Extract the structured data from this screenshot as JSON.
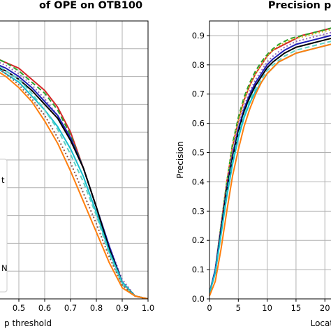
{
  "chart_data": [
    {
      "type": "line",
      "title": "of OPE on OTB100",
      "xlabel": "p threshold",
      "ylabel": "",
      "xlim": [
        0.4,
        1.0
      ],
      "ylim": [
        0.0,
        1.0
      ],
      "x_ticks": [
        "0.5",
        "0.6",
        "0.7",
        "0.8",
        "0.9",
        "1.0"
      ],
      "y_ticks": [],
      "grid": true,
      "legend_fragments": [
        "t",
        "N"
      ],
      "x": [
        0.4,
        0.45,
        0.5,
        0.55,
        0.6,
        0.65,
        0.7,
        0.75,
        0.8,
        0.85,
        0.9,
        0.95,
        1.0
      ],
      "series": [
        {
          "color": "#d62728",
          "dash": "solid",
          "values": [
            0.87,
            0.85,
            0.83,
            0.79,
            0.75,
            0.69,
            0.6,
            0.47,
            0.33,
            0.18,
            0.06,
            0.01,
            0.0
          ]
        },
        {
          "color": "#2ca02c",
          "dash": "dashed",
          "values": [
            0.87,
            0.85,
            0.82,
            0.78,
            0.74,
            0.68,
            0.59,
            0.47,
            0.33,
            0.18,
            0.06,
            0.01,
            0.0
          ]
        },
        {
          "color": "#9467bd",
          "dash": "dotted",
          "values": [
            0.86,
            0.84,
            0.81,
            0.77,
            0.72,
            0.66,
            0.58,
            0.47,
            0.33,
            0.19,
            0.07,
            0.01,
            0.0
          ]
        },
        {
          "color": "#1f1fb4",
          "dash": "solid",
          "values": [
            0.85,
            0.83,
            0.8,
            0.76,
            0.71,
            0.66,
            0.58,
            0.47,
            0.33,
            0.19,
            0.06,
            0.01,
            0.0
          ]
        },
        {
          "color": "#000000",
          "dash": "solid",
          "values": [
            0.84,
            0.82,
            0.79,
            0.75,
            0.7,
            0.65,
            0.57,
            0.47,
            0.33,
            0.18,
            0.06,
            0.01,
            0.0
          ]
        },
        {
          "color": "#17becf",
          "dash": "solid",
          "values": [
            0.84,
            0.81,
            0.78,
            0.73,
            0.68,
            0.62,
            0.54,
            0.44,
            0.31,
            0.17,
            0.06,
            0.01,
            0.0
          ]
        },
        {
          "color": "#5fd3c5",
          "dash": "dashed",
          "values": [
            0.85,
            0.82,
            0.79,
            0.74,
            0.68,
            0.61,
            0.52,
            0.42,
            0.3,
            0.16,
            0.05,
            0.01,
            0.0
          ]
        },
        {
          "color": "#8c564b",
          "dash": "dotted",
          "values": [
            0.84,
            0.81,
            0.77,
            0.72,
            0.66,
            0.58,
            0.49,
            0.38,
            0.27,
            0.15,
            0.05,
            0.01,
            0.0
          ]
        },
        {
          "color": "#ff7f0e",
          "dash": "solid",
          "values": [
            0.83,
            0.8,
            0.76,
            0.71,
            0.64,
            0.56,
            0.46,
            0.35,
            0.24,
            0.13,
            0.04,
            0.01,
            0.0
          ]
        }
      ]
    },
    {
      "type": "line",
      "title": "Precision plot",
      "xlabel": "Location",
      "ylabel": "Precision",
      "xlim": [
        0,
        23
      ],
      "ylim": [
        0.0,
        0.95
      ],
      "x_ticks": [
        "0",
        "5",
        "10",
        "15",
        "20"
      ],
      "y_ticks": [
        "0.0",
        "0.1",
        "0.2",
        "0.3",
        "0.4",
        "0.5",
        "0.6",
        "0.7",
        "0.8",
        "0.9"
      ],
      "grid": true,
      "x": [
        0,
        1,
        2,
        3,
        4,
        5,
        6,
        7,
        8,
        9,
        10,
        11,
        12,
        13,
        14,
        15,
        16,
        17,
        18,
        19,
        20,
        21,
        22,
        23
      ],
      "series": [
        {
          "color": "#d62728",
          "dash": "solid",
          "values": [
            0.02,
            0.1,
            0.25,
            0.4,
            0.52,
            0.61,
            0.68,
            0.73,
            0.77,
            0.8,
            0.83,
            0.85,
            0.86,
            0.87,
            0.88,
            0.89,
            0.9,
            0.905,
            0.91,
            0.915,
            0.92,
            0.925,
            0.93,
            0.935
          ]
        },
        {
          "color": "#2ca02c",
          "dash": "dashed",
          "values": [
            0.02,
            0.1,
            0.25,
            0.4,
            0.53,
            0.62,
            0.69,
            0.74,
            0.78,
            0.81,
            0.835,
            0.855,
            0.87,
            0.88,
            0.89,
            0.895,
            0.9,
            0.905,
            0.91,
            0.915,
            0.92,
            0.925,
            0.93,
            0.93
          ]
        },
        {
          "color": "#d4c12a",
          "dash": "dotted",
          "values": [
            0.02,
            0.1,
            0.25,
            0.4,
            0.52,
            0.61,
            0.68,
            0.73,
            0.77,
            0.8,
            0.83,
            0.85,
            0.865,
            0.875,
            0.885,
            0.89,
            0.895,
            0.9,
            0.905,
            0.91,
            0.915,
            0.92,
            0.92,
            0.925
          ]
        },
        {
          "color": "#9467bd",
          "dash": "dotted",
          "values": [
            0.02,
            0.1,
            0.24,
            0.38,
            0.5,
            0.59,
            0.66,
            0.71,
            0.75,
            0.78,
            0.81,
            0.83,
            0.845,
            0.86,
            0.87,
            0.88,
            0.885,
            0.89,
            0.895,
            0.9,
            0.905,
            0.91,
            0.91,
            0.915
          ]
        },
        {
          "color": "#1f1fb4",
          "dash": "solid",
          "values": [
            0.02,
            0.1,
            0.24,
            0.38,
            0.49,
            0.58,
            0.65,
            0.7,
            0.74,
            0.77,
            0.8,
            0.82,
            0.835,
            0.85,
            0.86,
            0.87,
            0.875,
            0.88,
            0.885,
            0.89,
            0.895,
            0.9,
            0.9,
            0.905
          ]
        },
        {
          "color": "#000000",
          "dash": "solid",
          "values": [
            0.02,
            0.09,
            0.23,
            0.37,
            0.48,
            0.57,
            0.64,
            0.69,
            0.73,
            0.76,
            0.79,
            0.81,
            0.825,
            0.84,
            0.85,
            0.86,
            0.865,
            0.87,
            0.875,
            0.88,
            0.885,
            0.89,
            0.89,
            0.895
          ]
        },
        {
          "color": "#5fd3c5",
          "dash": "dashed",
          "values": [
            0.02,
            0.09,
            0.22,
            0.36,
            0.47,
            0.56,
            0.63,
            0.68,
            0.72,
            0.75,
            0.78,
            0.8,
            0.815,
            0.83,
            0.84,
            0.85,
            0.855,
            0.86,
            0.865,
            0.87,
            0.875,
            0.88,
            0.88,
            0.885
          ]
        },
        {
          "color": "#17becf",
          "dash": "solid",
          "values": [
            0.02,
            0.09,
            0.22,
            0.35,
            0.46,
            0.55,
            0.62,
            0.67,
            0.71,
            0.74,
            0.77,
            0.79,
            0.81,
            0.82,
            0.83,
            0.84,
            0.845,
            0.85,
            0.855,
            0.86,
            0.865,
            0.87,
            0.87,
            0.875
          ]
        },
        {
          "color": "#ff7f0e",
          "dash": "solid",
          "values": [
            0.01,
            0.06,
            0.17,
            0.3,
            0.42,
            0.51,
            0.59,
            0.65,
            0.7,
            0.74,
            0.77,
            0.79,
            0.81,
            0.82,
            0.83,
            0.84,
            0.845,
            0.85,
            0.855,
            0.86,
            0.865,
            0.87,
            0.87,
            0.875
          ]
        }
      ]
    }
  ]
}
